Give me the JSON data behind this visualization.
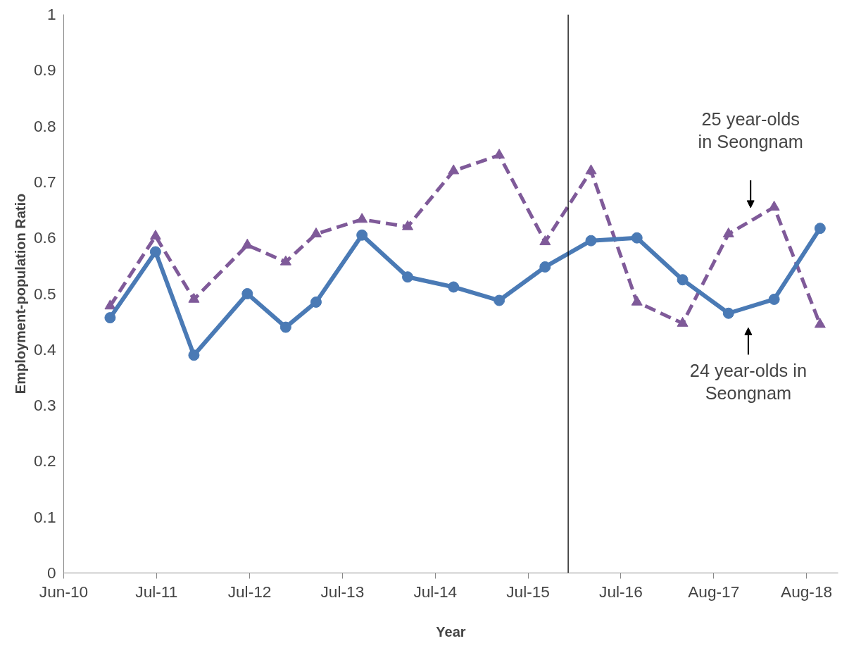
{
  "chart_data": {
    "type": "line",
    "xlabel": "Year",
    "ylabel": "Employment-population Ratio",
    "x": [
      "2011-01",
      "2011-07",
      "2011-12",
      "2012-07",
      "2012-12",
      "2013-04",
      "2013-10",
      "2014-04",
      "2014-10",
      "2015-04",
      "2015-10",
      "2016-04",
      "2016-10",
      "2017-04",
      "2017-10",
      "2018-04",
      "2018-10"
    ],
    "series": [
      {
        "color": "#4a7ab5",
        "marker": "circle",
        "line_style": "solid",
        "values": [
          0.457,
          0.575,
          0.39,
          0.5,
          0.44,
          0.485,
          0.605,
          0.53,
          0.512,
          0.488,
          0.548,
          0.595,
          0.6,
          0.525,
          0.465,
          0.49,
          0.617
        ]
      },
      {
        "color": "#7f5a99",
        "marker": "triangle",
        "line_style": "dashed",
        "values": [
          0.478,
          0.603,
          0.49,
          0.587,
          0.557,
          0.607,
          0.633,
          0.62,
          0.72,
          0.748,
          0.593,
          0.72,
          0.485,
          0.447,
          0.607,
          0.655,
          0.445
        ]
      }
    ],
    "xlim": [
      "2010-06-30",
      "2018-12-12"
    ],
    "xticks": [
      {
        "value": "2010-06-30",
        "label": "Jun-10"
      },
      {
        "value": "2011-07-05",
        "label": "Jul-11"
      },
      {
        "value": "2012-07-10",
        "label": "Jul-12"
      },
      {
        "value": "2013-07-15",
        "label": "Jul-13"
      },
      {
        "value": "2014-07-20",
        "label": "Jul-14"
      },
      {
        "value": "2015-07-25",
        "label": "Jul-15"
      },
      {
        "value": "2016-07-29",
        "label": "Jul-16"
      },
      {
        "value": "2017-08-03",
        "label": "Aug-17"
      },
      {
        "value": "2018-08-08",
        "label": "Aug-18"
      }
    ],
    "ylim": [
      0,
      1
    ],
    "yticks": [
      0,
      0.1,
      0.2,
      0.3,
      0.4,
      0.5,
      0.6,
      0.7,
      0.8,
      0.9,
      1
    ],
    "ref_lines": [
      {
        "axis": "x",
        "value": "2016-01",
        "color": "#000000"
      }
    ],
    "annotations": [
      "25 year-olds\nin Seongnam",
      "24 year-olds in\nSeongnam"
    ],
    "grid": false
  }
}
